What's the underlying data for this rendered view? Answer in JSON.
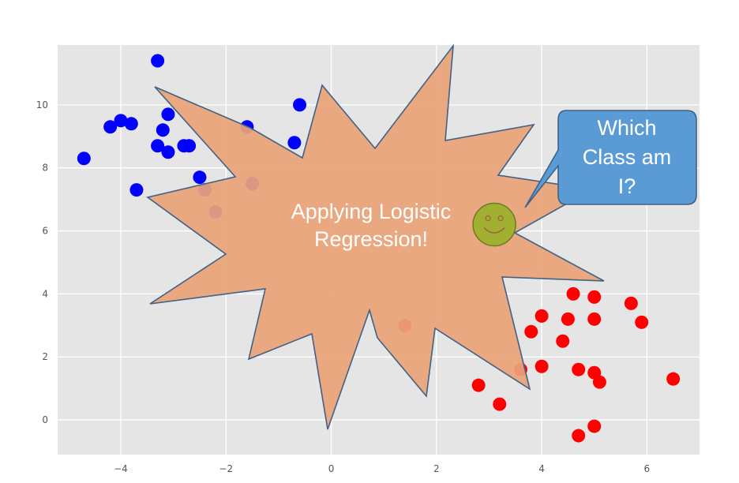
{
  "chart_data": {
    "type": "scatter",
    "title": "",
    "xlabel": "",
    "ylabel": "",
    "xlim": [
      -5.2,
      7.0
    ],
    "ylim": [
      -1.1,
      11.9
    ],
    "grid": true,
    "xticks": [
      -4,
      -2,
      0,
      2,
      4,
      6
    ],
    "xtick_labels": [
      "−4",
      "−2",
      "0",
      "2",
      "4",
      "6"
    ],
    "yticks": [
      0,
      2,
      4,
      6,
      8,
      10
    ],
    "ytick_labels": [
      "0",
      "2",
      "4",
      "6",
      "8",
      "10"
    ],
    "series": [
      {
        "color": "#0000ff",
        "points": [
          [
            -4.7,
            8.3
          ],
          [
            -4.2,
            9.3
          ],
          [
            -4.0,
            9.5
          ],
          [
            -3.8,
            9.4
          ],
          [
            -3.7,
            7.3
          ],
          [
            -3.3,
            11.4
          ],
          [
            -3.3,
            8.7
          ],
          [
            -3.2,
            9.2
          ],
          [
            -3.1,
            9.7
          ],
          [
            -3.1,
            8.5
          ],
          [
            -2.8,
            8.7
          ],
          [
            -2.7,
            8.7
          ],
          [
            -2.5,
            7.7
          ],
          [
            -2.4,
            7.3
          ],
          [
            -2.2,
            6.6
          ],
          [
            -1.6,
            9.3
          ],
          [
            -1.5,
            7.5
          ],
          [
            -0.7,
            8.8
          ],
          [
            -0.6,
            10.0
          ]
        ]
      },
      {
        "color": "#ff0000",
        "points": [
          [
            1.4,
            3.0
          ],
          [
            2.8,
            1.1
          ],
          [
            3.2,
            0.5
          ],
          [
            3.6,
            1.6
          ],
          [
            3.8,
            2.8
          ],
          [
            4.0,
            1.7
          ],
          [
            4.0,
            3.3
          ],
          [
            4.4,
            2.5
          ],
          [
            4.5,
            3.2
          ],
          [
            4.6,
            4.0
          ],
          [
            4.7,
            1.6
          ],
          [
            4.7,
            -0.5
          ],
          [
            5.0,
            3.9
          ],
          [
            5.0,
            3.2
          ],
          [
            5.0,
            1.5
          ],
          [
            5.1,
            1.2
          ],
          [
            5.0,
            -0.2
          ],
          [
            5.7,
            3.7
          ],
          [
            5.9,
            3.1
          ],
          [
            6.5,
            1.3
          ]
        ]
      }
    ],
    "query_point": {
      "x": 3.1,
      "y": 6.2,
      "color": "#a1b030",
      "icon": "smiley-face-icon"
    }
  },
  "annotations": {
    "burst_line1": "Applying Logistic",
    "burst_line2": "Regression!",
    "burst_color": "#e9a479",
    "callout_line1": "Which",
    "callout_line2": "Class am",
    "callout_line3": "I?",
    "callout_color": "#5b9bd5"
  }
}
